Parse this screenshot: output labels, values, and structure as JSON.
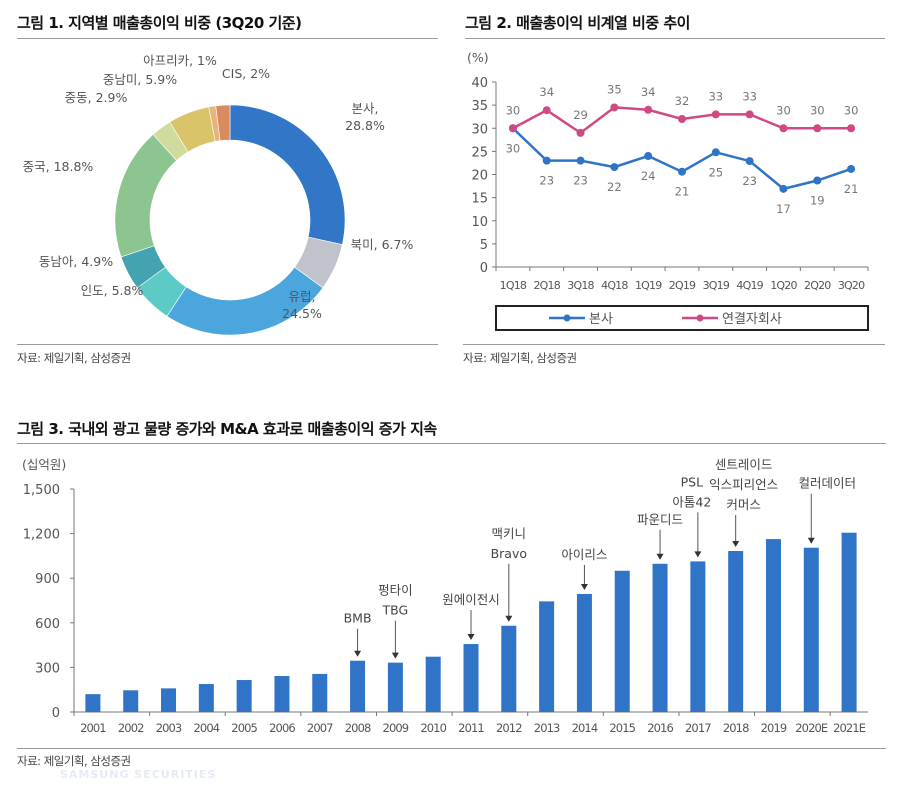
{
  "figures": [
    {
      "title": "그림 1.  지역별 매출총이익 비중 (3Q20 기준)",
      "source": "자료: 제일기획, 삼성증권"
    },
    {
      "title": "그림 2.  매출총이익 비계열 비중 추이",
      "source": "자료: 제일기획, 삼성증권"
    },
    {
      "title": "그림 3.  국내외 광고 물량 증가와 M&A 효과로 매출총이익 증가 지속",
      "source": "자료: 제일기획, 삼성증권"
    }
  ],
  "watermark": "SAMSUNG SECURITIES",
  "chart_data": [
    {
      "type": "pie",
      "donut": true,
      "title": "지역별 매출총이익 비중 (3Q20 기준)",
      "slices": [
        {
          "label": "본사",
          "value": 28.8,
          "value_label": "28.8%",
          "color": "#3276c8"
        },
        {
          "label": "북미",
          "value": 6.7,
          "value_label": "6.7%",
          "color": "#c0c3cc"
        },
        {
          "label": "유럽",
          "value": 24.5,
          "value_label": "24.5%",
          "color": "#4aa6dc"
        },
        {
          "label": "인도",
          "value": 5.8,
          "value_label": "5.8%",
          "color": "#5ccbc6"
        },
        {
          "label": "동남아",
          "value": 4.9,
          "value_label": "4.9%",
          "color": "#43a3b0"
        },
        {
          "label": "중국",
          "value": 18.8,
          "value_label": "18.8%",
          "color": "#8cc58f"
        },
        {
          "label": "중동",
          "value": 2.9,
          "value_label": "2.9%",
          "color": "#cfdc9e"
        },
        {
          "label": "중남미",
          "value": 5.9,
          "value_label": "5.9%",
          "color": "#d9c46a"
        },
        {
          "label": "아프리카",
          "value": 1,
          "value_label": "1%",
          "color": "#e8b47c"
        },
        {
          "label": "CIS",
          "value": 2,
          "value_label": "2%",
          "color": "#d98a5e"
        }
      ]
    },
    {
      "type": "line",
      "title": "매출총이익 비계열 비중 추이",
      "ylabel": "(%)",
      "ylim": [
        0,
        40
      ],
      "yticks": [
        0,
        5,
        10,
        15,
        20,
        25,
        30,
        35,
        40
      ],
      "categories": [
        "1Q18",
        "2Q18",
        "3Q18",
        "4Q18",
        "1Q19",
        "2Q19",
        "3Q19",
        "4Q19",
        "1Q20",
        "2Q20",
        "3Q20"
      ],
      "series": [
        {
          "name": "본사",
          "color": "#2f74c6",
          "values": [
            30,
            23,
            23,
            21.6,
            24,
            20.6,
            24.8,
            22.9,
            16.9,
            18.7,
            21.2
          ],
          "labels": [
            "30",
            "23",
            "23",
            "22",
            "24",
            "21",
            "25",
            "23",
            "17",
            "19",
            "21"
          ]
        },
        {
          "name": "연결자회사",
          "color": "#cf4a85",
          "values": [
            30,
            33.9,
            29,
            34.5,
            34,
            32,
            33,
            33,
            30,
            30,
            30
          ],
          "labels": [
            "30",
            "34",
            "29",
            "35",
            "34",
            "32",
            "33",
            "33",
            "30",
            "30",
            "30"
          ]
        }
      ],
      "legend": "bottom",
      "grid": false
    },
    {
      "type": "bar",
      "title": "국내외 광고 물량 증가와 M&A 효과로 매출총이익 증가 지속",
      "ylabel": "(십억원)",
      "ylim": [
        0,
        1500
      ],
      "yticks": [
        0,
        300,
        600,
        900,
        1200,
        1500
      ],
      "ytick_labels": [
        "0",
        "300",
        "600",
        "900",
        "1,200",
        "1,500"
      ],
      "categories": [
        "2001",
        "2002",
        "2003",
        "2004",
        "2005",
        "2006",
        "2007",
        "2008",
        "2009",
        "2010",
        "2011",
        "2012",
        "2013",
        "2014",
        "2015",
        "2016",
        "2017",
        "2018",
        "2019",
        "2020E",
        "2021E"
      ],
      "values": [
        120,
        146,
        159,
        188,
        215,
        242,
        256,
        345,
        332,
        372,
        457,
        580,
        744,
        794,
        950,
        997,
        1013,
        1083,
        1163,
        1105,
        1206
      ],
      "color": "#2f74c6",
      "annotations": [
        {
          "category": "2008",
          "lines": [
            "BMB"
          ]
        },
        {
          "category": "2009",
          "lines": [
            "펑타이",
            "TBG"
          ]
        },
        {
          "category": "2011",
          "lines": [
            "원에이전시"
          ]
        },
        {
          "category": "2012",
          "lines": [
            "맥키니",
            "Bravo"
          ]
        },
        {
          "category": "2014",
          "lines": [
            "아이리스"
          ]
        },
        {
          "category": "2016",
          "lines": [
            "파운디드"
          ]
        },
        {
          "category": "2017",
          "lines": [
            "PSL",
            "아톰42"
          ]
        },
        {
          "category": "2018",
          "lines": [
            "센트레이드",
            "익스피리언스",
            "커머스"
          ]
        },
        {
          "category": "2020E",
          "lines": [
            "컬러데이터"
          ]
        }
      ]
    }
  ]
}
